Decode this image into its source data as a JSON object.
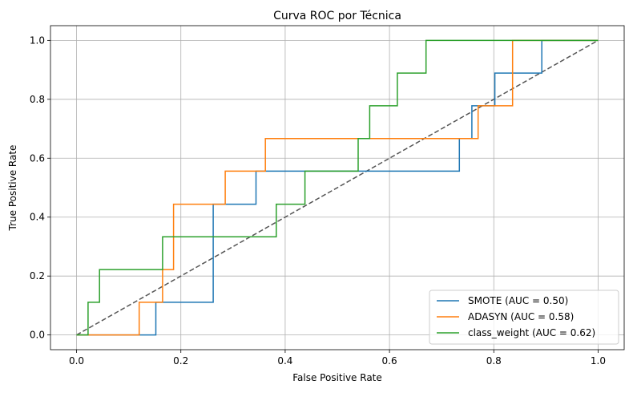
{
  "chart_data": {
    "type": "line",
    "title": "Curva ROC por Técnica",
    "xlabel": "False Positive Rate",
    "ylabel": "True Positive Rate",
    "xlim": [
      -0.05,
      1.05
    ],
    "ylim": [
      -0.05,
      1.05
    ],
    "xticks": [
      "0.0",
      "0.2",
      "0.4",
      "0.6",
      "0.8",
      "1.0"
    ],
    "yticks": [
      "0.0",
      "0.2",
      "0.4",
      "0.6",
      "0.8",
      "1.0"
    ],
    "grid": true,
    "legend_position": "lower-right",
    "series": [
      {
        "name": "SMOTE (AUC = 0.50)",
        "color": "#1f77b4",
        "x": [
          0.0,
          0.152,
          0.152,
          0.262,
          0.262,
          0.344,
          0.344,
          0.372,
          0.372,
          0.734,
          0.734,
          0.758,
          0.758,
          0.802,
          0.802,
          0.892,
          0.892,
          1.0
        ],
        "y": [
          0.0,
          0.0,
          0.111,
          0.111,
          0.444,
          0.444,
          0.556,
          0.556,
          0.556,
          0.556,
          0.667,
          0.667,
          0.778,
          0.778,
          0.889,
          0.889,
          1.0,
          1.0
        ]
      },
      {
        "name": "ADASYN (AUC = 0.58)",
        "color": "#ff7f0e",
        "x": [
          0.0,
          0.12,
          0.12,
          0.165,
          0.165,
          0.186,
          0.186,
          0.285,
          0.285,
          0.362,
          0.362,
          0.77,
          0.77,
          0.836,
          0.836,
          1.0
        ],
        "y": [
          0.0,
          0.0,
          0.111,
          0.111,
          0.222,
          0.222,
          0.444,
          0.444,
          0.556,
          0.556,
          0.667,
          0.667,
          0.778,
          0.778,
          1.0,
          1.0
        ]
      },
      {
        "name": "class_weight (AUC = 0.62)",
        "color": "#2ca02c",
        "x": [
          0.0,
          0.022,
          0.022,
          0.044,
          0.044,
          0.165,
          0.165,
          0.383,
          0.383,
          0.438,
          0.438,
          0.54,
          0.54,
          0.562,
          0.562,
          0.615,
          0.615,
          0.67,
          0.67,
          1.0
        ],
        "y": [
          0.0,
          0.0,
          0.111,
          0.111,
          0.222,
          0.222,
          0.333,
          0.333,
          0.444,
          0.444,
          0.556,
          0.556,
          0.667,
          0.667,
          0.778,
          0.778,
          0.889,
          0.889,
          1.0,
          1.0
        ]
      }
    ],
    "reference_line": {
      "color": "#555555",
      "style": "dashed",
      "x": [
        0,
        1
      ],
      "y": [
        0,
        1
      ]
    }
  }
}
